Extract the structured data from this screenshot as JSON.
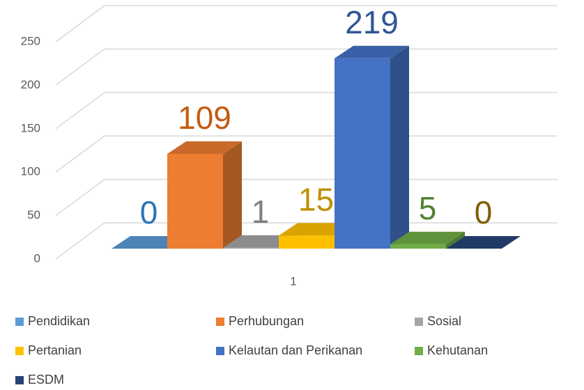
{
  "chart_data": {
    "type": "bar3d",
    "categories": [
      "1"
    ],
    "series": [
      {
        "name": "Pendidikan",
        "color": "#5b9bd5",
        "label_color": "#2e75b6",
        "values": [
          0
        ]
      },
      {
        "name": "Perhubungan",
        "color": "#ed7d31",
        "label_color": "#c55a11",
        "values": [
          109
        ]
      },
      {
        "name": "Sosial",
        "color": "#a5a5a5",
        "label_color": "#7f7f7f",
        "values": [
          1
        ]
      },
      {
        "name": "Pertanian",
        "color": "#ffc000",
        "label_color": "#bf9000",
        "values": [
          15
        ]
      },
      {
        "name": "Kelautan dan Perikanan",
        "color": "#4472c4",
        "label_color": "#2f5597",
        "values": [
          219
        ]
      },
      {
        "name": "Kehutanan",
        "color": "#70ad47",
        "label_color": "#548235",
        "values": [
          5
        ]
      },
      {
        "name": "ESDM",
        "color": "#264478",
        "label_color": "#7f6000",
        "values": [
          0
        ]
      }
    ],
    "ylim": [
      0,
      250
    ],
    "yticks": [
      0,
      50,
      100,
      150,
      200,
      250
    ],
    "grid": true,
    "legend": "bottom"
  }
}
